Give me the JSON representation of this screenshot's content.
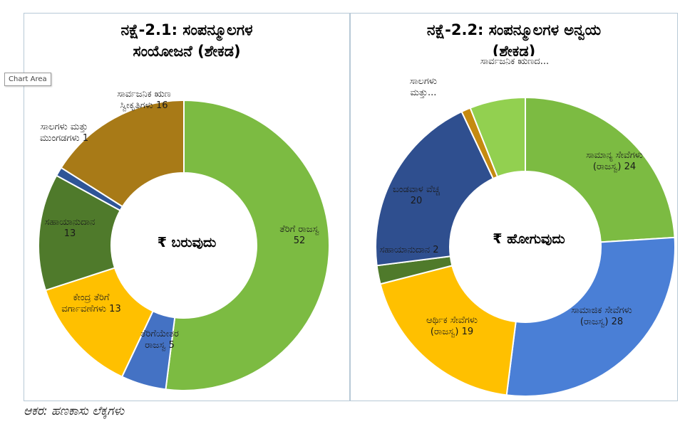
{
  "tooltip": "Chart Area",
  "source_note": "ಆಕರ: ಹಣಕಾಸು ಲೆಕ್ಕಗಳು",
  "chart_data": [
    {
      "type": "pie",
      "title_line1": "ನಕ್ಷೆ-2.1: ಸಂಪನ್ಮೂಲಗಳ",
      "title_line2": "ಸಂಯೋಜನೆ (ಶೇಕಡ)",
      "center_label": "₹ ಬರುವುದು",
      "slices": [
        {
          "label": "ತೆರಿಗೆ ರಾಜಸ್ವ",
          "value": 52,
          "color": "#7cbb42"
        },
        {
          "label": "ತೆರಿಗೆಯೇತರ ರಾಜಸ್ವ",
          "value": 5,
          "color": "#4472c4"
        },
        {
          "label": "ಕೇಂದ್ರ ತೆರಿಗೆ ವರ್ಗಾವಣೆಗಳು",
          "value": 13,
          "color": "#ffc000"
        },
        {
          "label": "ಸಹಾಯಾನುದಾನ",
          "value": 13,
          "color": "#4f7a2b"
        },
        {
          "label": "ಸಾಲಗಳು ಮತ್ತು ಮುಂಗಡಗಳು",
          "value": 1,
          "color": "#2f5597"
        },
        {
          "label": "ಸಾರ್ವಜನಿಕ ಋಣ ಸ್ವೀಕೃತಿಗಳು",
          "value": 16,
          "color": "#a87a17"
        }
      ]
    },
    {
      "type": "pie",
      "title_line1": "ನಕ್ಷೆ-2.2: ಸಂಪನ್ಮೂಲಗಳ ಅನ್ವಯ",
      "title_line2": "(ಶೇಕಡ)",
      "center_label": "₹ ಹೋಗುವುದು",
      "slices": [
        {
          "label": "ಸಾಮಾನ್ಯ ಸೇವೆಗಳು (ರಾಜಸ್ವ)",
          "value": 24,
          "color": "#7cbb42"
        },
        {
          "label": "ಸಾಮಾಜಿಕ ಸೇವೆಗಳು (ರಾಜಸ್ವ)",
          "value": 28,
          "color": "#4a7fd6"
        },
        {
          "label": "ಆರ್ಥಿಕ ಸೇವೆಗಳು (ರಾಜಸ್ವ)",
          "value": 19,
          "color": "#ffc000"
        },
        {
          "label": "ಸಹಾಯಾನುದಾನ",
          "value": 2,
          "color": "#4f7a2b"
        },
        {
          "label": "ಬಂಡವಾಳ ವೆಚ್ಚ",
          "value": 20,
          "color": "#2f4f8f"
        },
        {
          "label": "ಸಾಲಗಳು ಮತ್ತು...",
          "value": 1,
          "color": "#c58a10"
        },
        {
          "label": "ಸಾರ್ವಜನಿಕ ಋಣದ...",
          "value": 6,
          "color": "#92d050"
        }
      ]
    }
  ]
}
